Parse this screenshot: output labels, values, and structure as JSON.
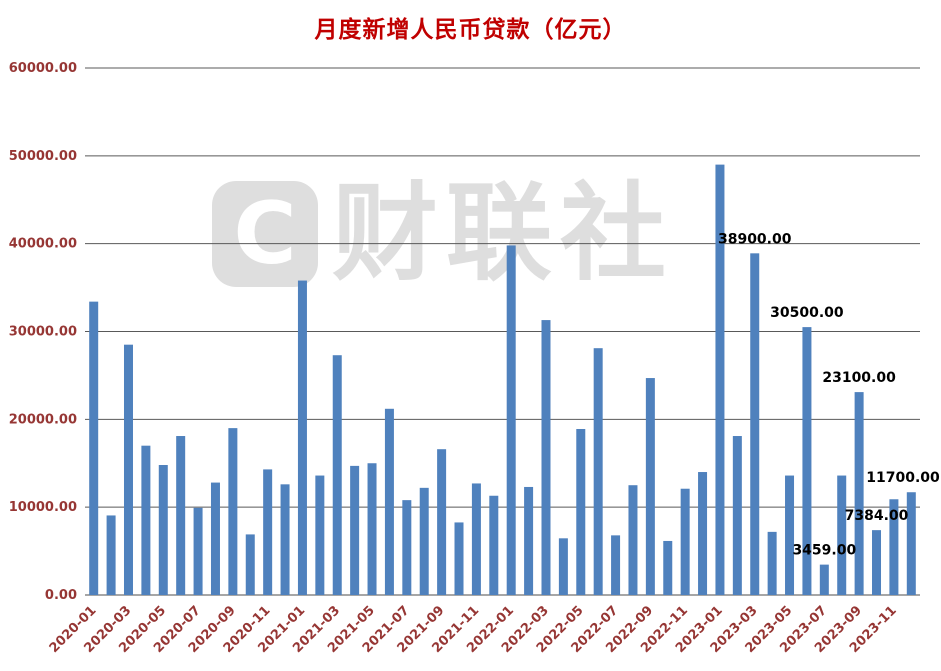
{
  "watermark": {
    "logo_letter": "C",
    "text": "财联社"
  },
  "chart_data": {
    "type": "bar",
    "title": "月度新增人民币贷款（亿元）",
    "xlabel": "",
    "ylabel": "",
    "ylim": [
      0,
      60000
    ],
    "ytick_step": 10000,
    "x_label_interval": 2,
    "grid": true,
    "legend": "none",
    "categories": [
      "2020-01",
      "2020-02",
      "2020-03",
      "2020-04",
      "2020-05",
      "2020-06",
      "2020-07",
      "2020-08",
      "2020-09",
      "2020-10",
      "2020-11",
      "2020-12",
      "2021-01",
      "2021-02",
      "2021-03",
      "2021-04",
      "2021-05",
      "2021-06",
      "2021-07",
      "2021-08",
      "2021-09",
      "2021-10",
      "2021-11",
      "2021-12",
      "2022-01",
      "2022-02",
      "2022-03",
      "2022-04",
      "2022-05",
      "2022-06",
      "2022-07",
      "2022-08",
      "2022-09",
      "2022-10",
      "2022-11",
      "2022-12",
      "2023-01",
      "2023-02",
      "2023-03",
      "2023-04",
      "2023-05",
      "2023-06",
      "2023-07",
      "2023-08",
      "2023-09",
      "2023-10",
      "2023-11",
      "2023-12"
    ],
    "values": [
      33400,
      9057,
      28500,
      17000,
      14800,
      18100,
      9927,
      12800,
      19000,
      6898,
      14300,
      12600,
      35800,
      13600,
      27300,
      14700,
      15000,
      21200,
      10800,
      12200,
      16600,
      8262,
      12700,
      11300,
      39800,
      12300,
      31300,
      6454,
      18900,
      28100,
      6790,
      12500,
      24700,
      6152,
      12100,
      14000,
      49000,
      18100,
      38900,
      7188,
      13600,
      30500,
      3459,
      13600,
      23100,
      7384,
      10900,
      11700
    ],
    "data_labels": [
      {
        "category": "2023-03",
        "text": "38900.00"
      },
      {
        "category": "2023-06",
        "text": "30500.00"
      },
      {
        "category": "2023-07",
        "text": "3459.00"
      },
      {
        "category": "2023-09",
        "text": "23100.00"
      },
      {
        "category": "2023-10",
        "text": "7384.00"
      },
      {
        "category": "2023-12",
        "text": "11700.00"
      }
    ],
    "colors": {
      "bar": "#4F81BD",
      "title": "#C00000",
      "axis_label": "#963634",
      "grid": "#595959",
      "axis": "#4d4d4d",
      "data_label": "#000000",
      "watermark": "#c9c9c9"
    }
  }
}
